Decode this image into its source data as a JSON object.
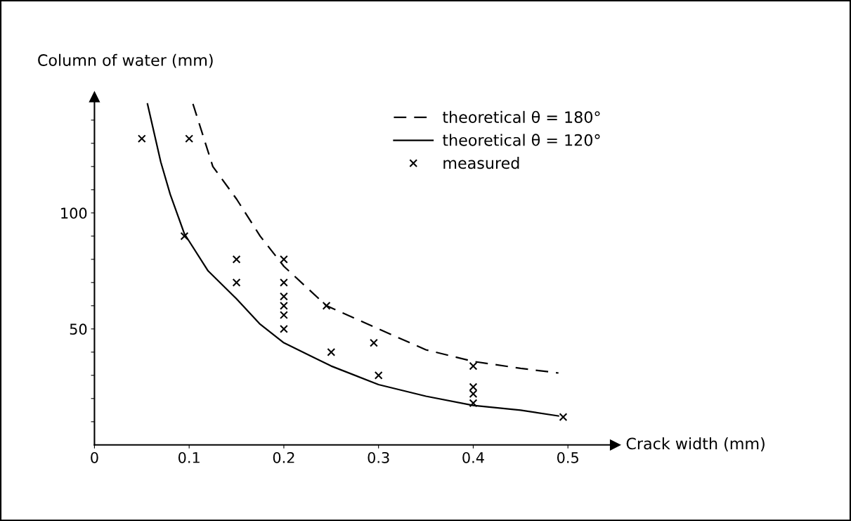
{
  "chart_data": {
    "type": "scatter",
    "xlabel": "Crack width (mm)",
    "ylabel": "Column of water (mm)",
    "xlim": [
      0,
      0.55
    ],
    "ylim": [
      0,
      150
    ],
    "xticks": [
      0,
      0.1,
      0.2,
      0.3,
      0.4,
      0.5
    ],
    "yticks": [
      {
        "value": 10,
        "label": null
      },
      {
        "value": 20,
        "label": null
      },
      {
        "value": 30,
        "label": null
      },
      {
        "value": 40,
        "label": null
      },
      50,
      {
        "value": 60,
        "label": null
      },
      {
        "value": 70,
        "label": null
      },
      {
        "value": 80,
        "label": null
      },
      {
        "value": 90,
        "label": null
      },
      100,
      {
        "value": 110,
        "label": null
      },
      {
        "value": 120,
        "label": null
      },
      {
        "value": 130,
        "label": null
      },
      {
        "value": 140,
        "label": null
      }
    ],
    "grid": false,
    "legend": "top right",
    "series": [
      {
        "name": "theoretical θ = 180°",
        "type": "line",
        "line_style": "dashed",
        "marker": "none",
        "color": "#000000",
        "x": [
          0.104,
          0.125,
          0.15,
          0.175,
          0.2,
          0.245,
          0.3,
          0.35,
          0.4,
          0.45,
          0.49
        ],
        "values": [
          147,
          120,
          106,
          90,
          77,
          60,
          50,
          41,
          36,
          33,
          31
        ]
      },
      {
        "name": "theoretical θ = 120°",
        "type": "line",
        "line_style": "solid",
        "marker": "none",
        "color": "#000000",
        "x": [
          0.056,
          0.07,
          0.08,
          0.095,
          0.12,
          0.15,
          0.175,
          0.2,
          0.25,
          0.3,
          0.35,
          0.4,
          0.45,
          0.49
        ],
        "values": [
          147,
          122,
          108,
          91,
          75,
          63,
          52,
          44,
          34,
          26,
          21,
          17,
          15,
          12.5
        ]
      },
      {
        "name": "measured",
        "marker": "cross",
        "color": "#000000",
        "x": [
          0.05,
          0.1,
          0.095,
          0.15,
          0.15,
          0.2,
          0.2,
          0.2,
          0.2,
          0.2,
          0.2,
          0.245,
          0.25,
          0.295,
          0.3,
          0.4,
          0.4,
          0.4,
          0.4,
          0.495
        ],
        "values": [
          132,
          132,
          90,
          80,
          70,
          80,
          70,
          64,
          60,
          56,
          50,
          60,
          40,
          44,
          30,
          34,
          25,
          22,
          18,
          12
        ]
      }
    ]
  }
}
